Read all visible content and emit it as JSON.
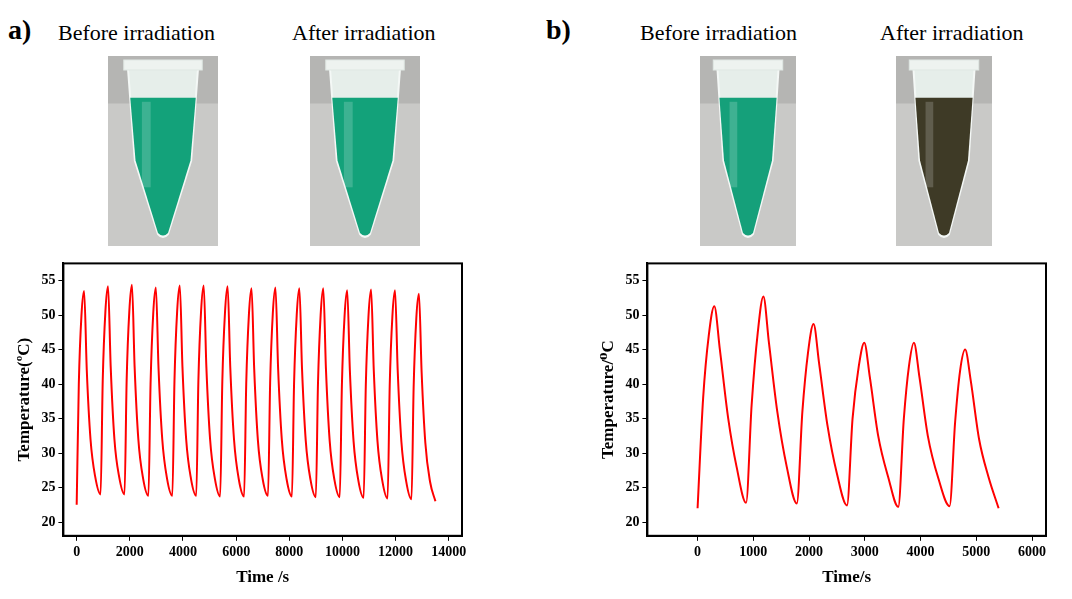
{
  "panels": [
    {
      "label": "a)",
      "photos": [
        {
          "caption": "Before irradiation",
          "color": "#13a27a"
        },
        {
          "caption": "After irradiation",
          "color": "#13a27a"
        }
      ]
    },
    {
      "label": "b)",
      "photos": [
        {
          "caption": "Before irradiation",
          "color": "#15a07a"
        },
        {
          "caption": "After irradiation",
          "color": "#3e3a26"
        }
      ]
    }
  ],
  "chart_data": [
    {
      "type": "line",
      "xlabel": "Time /s",
      "ylabel": "Temperature(ºC)",
      "color": "#ff0000",
      "grid": false,
      "xlim": [
        -500,
        14500
      ],
      "xticks": [
        0,
        2000,
        4000,
        6000,
        8000,
        10000,
        12000,
        14000
      ],
      "ylim": [
        18,
        57.5
      ],
      "yticks": [
        20,
        25,
        30,
        35,
        40,
        45,
        50,
        55
      ],
      "x": [
        0,
        80,
        180,
        280,
        380,
        520,
        700,
        900,
        980,
        1080,
        1180,
        1280,
        1420,
        1600,
        1800,
        1880,
        1980,
        2080,
        2180,
        2320,
        2500,
        2700,
        2780,
        2880,
        2980,
        3080,
        3220,
        3400,
        3600,
        3680,
        3780,
        3880,
        3980,
        4120,
        4300,
        4500,
        4580,
        4680,
        4780,
        4880,
        5020,
        5200,
        5400,
        5480,
        5580,
        5680,
        5780,
        5920,
        6100,
        6300,
        6380,
        6480,
        6580,
        6680,
        6820,
        7000,
        7200,
        7280,
        7380,
        7480,
        7580,
        7720,
        7900,
        8100,
        8180,
        8280,
        8380,
        8480,
        8620,
        8800,
        9000,
        9080,
        9180,
        9280,
        9380,
        9520,
        9700,
        9900,
        9980,
        10080,
        10180,
        10280,
        10420,
        10600,
        10800,
        10880,
        10980,
        11080,
        11180,
        11320,
        11500,
        11700,
        11780,
        11880,
        11980,
        12080,
        12220,
        12400,
        12600,
        12680,
        12780,
        12880,
        12980,
        13120,
        13300,
        13500
      ],
      "values": [
        22.5,
        40,
        50,
        53.5,
        42,
        32,
        26.5,
        24,
        40.5,
        50.5,
        54.2,
        42.5,
        32,
        26.5,
        24,
        40.5,
        50.5,
        54.4,
        42.5,
        32,
        26.3,
        23.8,
        40,
        50.2,
        54,
        42.3,
        32,
        26.3,
        23.8,
        40.5,
        50.5,
        54.3,
        42.5,
        32,
        26.3,
        23.8,
        40.5,
        50.5,
        54.3,
        42.5,
        32,
        26.3,
        23.7,
        40.3,
        50.3,
        54.2,
        42.4,
        32,
        26.2,
        23.7,
        40,
        50,
        53.9,
        42.2,
        31.8,
        26.2,
        23.8,
        40.2,
        50.2,
        54,
        42.3,
        31.9,
        26.2,
        23.7,
        40,
        50,
        53.9,
        42.2,
        31.8,
        26.1,
        23.6,
        40,
        50,
        53.9,
        42.2,
        31.8,
        26.1,
        23.6,
        39.8,
        49.8,
        53.6,
        42,
        31.7,
        26,
        23.5,
        39.8,
        49.8,
        53.7,
        42,
        31.7,
        26,
        23.4,
        39.8,
        49.8,
        53.6,
        42,
        31.6,
        25.9,
        23.3,
        39.5,
        49.5,
        53.1,
        41.8,
        31.5,
        25.8,
        23
      ]
    },
    {
      "type": "line",
      "xlabel": "Time/s",
      "ylabel": "Temperature/⁰C",
      "color": "#ff0000",
      "grid": false,
      "xlim": [
        -900,
        6250
      ],
      "xticks": [
        0,
        1000,
        2000,
        3000,
        4000,
        5000,
        6000
      ],
      "ylim": [
        18,
        57.5
      ],
      "yticks": [
        20,
        25,
        30,
        35,
        40,
        45,
        50,
        55
      ],
      "x": [
        0,
        100,
        200,
        300,
        400,
        550,
        700,
        870,
        970,
        1080,
        1180,
        1280,
        1430,
        1600,
        1780,
        1880,
        1980,
        2080,
        2180,
        2330,
        2500,
        2680,
        2780,
        2890,
        2990,
        3090,
        3240,
        3420,
        3600,
        3700,
        3790,
        3880,
        3980,
        4130,
        4320,
        4520,
        4620,
        4710,
        4800,
        4900,
        5050,
        5220,
        5400
      ],
      "values": [
        22,
        38,
        47,
        51.3,
        45,
        35,
        28,
        22.8,
        37,
        47.5,
        52.7,
        46,
        36,
        28,
        22.7,
        36,
        44.5,
        48.7,
        43,
        34,
        27,
        22.4,
        35,
        42.5,
        46,
        41,
        32.5,
        26.5,
        22.2,
        35,
        42.5,
        46,
        41,
        32.5,
        26.3,
        22.3,
        34.5,
        42,
        45,
        40.5,
        32,
        26.5,
        22
      ]
    }
  ]
}
